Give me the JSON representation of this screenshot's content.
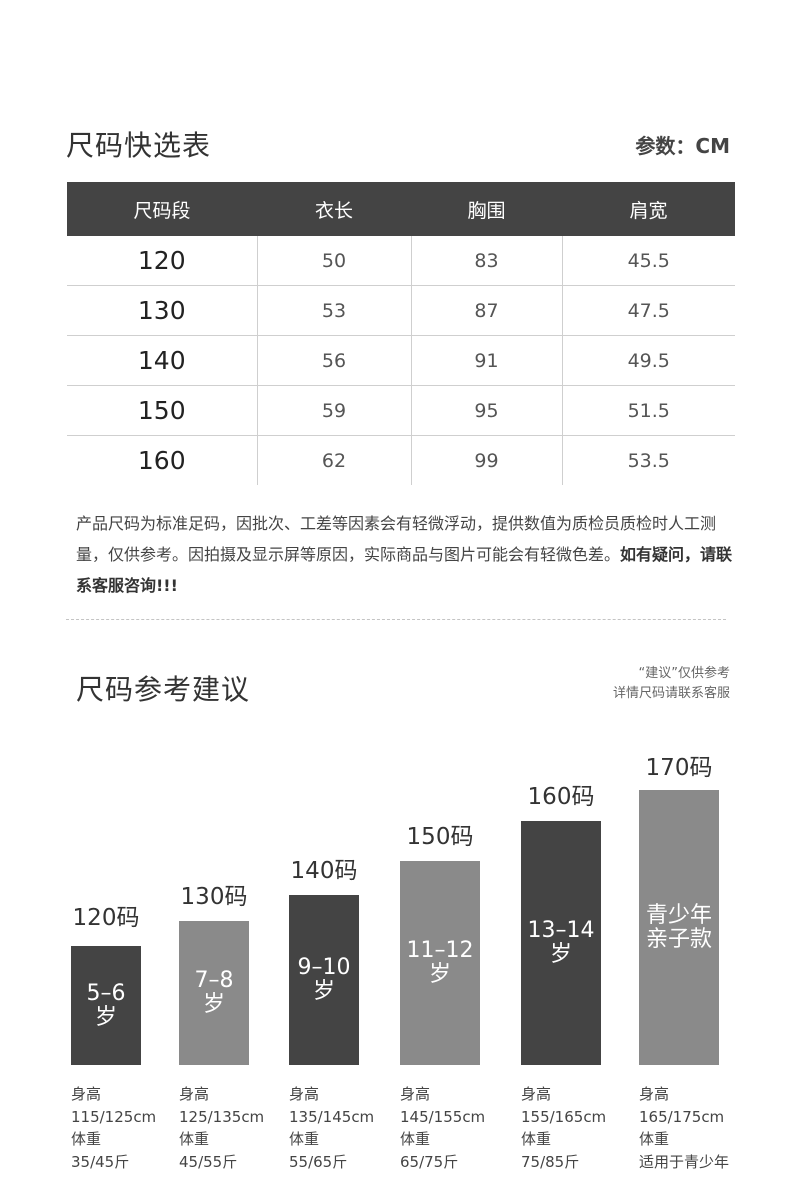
{
  "size_table": {
    "title": "尺码快选表",
    "unit_label": "参数：CM",
    "headers": [
      "尺码段",
      "衣长",
      "胸围",
      "肩宽"
    ],
    "rows": [
      [
        "120",
        "50",
        "83",
        "45.5"
      ],
      [
        "130",
        "53",
        "87",
        "47.5"
      ],
      [
        "140",
        "56",
        "91",
        "49.5"
      ],
      [
        "150",
        "59",
        "95",
        "51.5"
      ],
      [
        "160",
        "62",
        "99",
        "53.5"
      ]
    ]
  },
  "note": {
    "text": "产品尺码为标准足码，因批次、工差等因素会有轻微浮动，提供数值为质检员质检时人工测量，仅供参考。因拍摄及显示屏等原因，实际商品与图片可能会有轻微色差。",
    "bold": "如有疑问，请联系客服咨询!!!"
  },
  "reference": {
    "title": "尺码参考建议",
    "advice_line1": "“建议”仅供参考",
    "advice_line2": "详情尺码请联系客服",
    "colors": {
      "dark": "#444444",
      "light": "#8a8a8a"
    },
    "bars": [
      {
        "label": "120码",
        "text": "5–6\n岁",
        "shade": "dark",
        "height_label": "身高",
        "height": "115/125cm",
        "weight_label": "体重",
        "weight": "35/45斤"
      },
      {
        "label": "130码",
        "text": "7–8\n岁",
        "shade": "light",
        "height_label": "身高",
        "height": "125/135cm",
        "weight_label": "体重",
        "weight": "45/55斤"
      },
      {
        "label": "140码",
        "text": "9–10\n岁",
        "shade": "dark",
        "height_label": "身高",
        "height": "135/145cm",
        "weight_label": "体重",
        "weight": "55/65斤"
      },
      {
        "label": "150码",
        "text": "11–12\n岁",
        "shade": "light",
        "height_label": "身高",
        "height": "145/155cm",
        "weight_label": "体重",
        "weight": "65/75斤"
      },
      {
        "label": "160码",
        "text": "13–14\n岁",
        "shade": "dark",
        "height_label": "身高",
        "height": "155/165cm",
        "weight_label": "体重",
        "weight": "75/85斤"
      },
      {
        "label": "170码",
        "text": "青少年\n亲子款",
        "shade": "light",
        "height_label": "身高",
        "height": "165/175cm",
        "weight_label": "体重",
        "weight": "适用于青少年"
      }
    ]
  }
}
